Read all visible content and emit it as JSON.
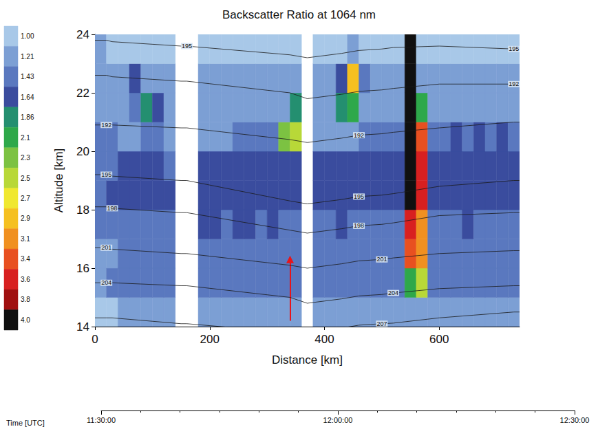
{
  "chart_data": {
    "type": "heatmap",
    "title": "Backscatter Ratio at 1064 nm",
    "x_label": "Distance [km]",
    "y_label": "Altitude [km]",
    "xlim": [
      0,
      740
    ],
    "xticks": [
      0,
      200,
      400,
      600
    ],
    "ylim": [
      14,
      24
    ],
    "yticks": [
      14,
      16,
      18,
      20,
      22,
      24
    ],
    "grid": false,
    "x_edges": [
      0,
      20,
      40,
      60,
      80,
      100,
      120,
      140,
      160,
      180,
      200,
      220,
      240,
      260,
      280,
      300,
      320,
      340,
      360,
      380,
      400,
      420,
      440,
      460,
      480,
      500,
      520,
      540,
      560,
      580,
      600,
      620,
      640,
      660,
      680,
      700,
      720,
      740
    ],
    "y_edges": [
      14,
      15,
      16,
      17,
      18,
      19,
      20,
      21,
      22,
      23,
      24
    ],
    "cells": [
      [
        1.0,
        1.0,
        1.21,
        1.21,
        1.21,
        1.21,
        1.21,
        null,
        null,
        1.21,
        1.21,
        1.21,
        1.21,
        1.21,
        1.21,
        1.21,
        1.21,
        1.21,
        null,
        1.21,
        1.21,
        1.21,
        1.21,
        1.21,
        1.21,
        1.21,
        1.21,
        1.21,
        1.21,
        1.21,
        1.21,
        1.21,
        1.21,
        1.21,
        1.21,
        1.21,
        1.21
      ],
      [
        1.21,
        1.43,
        1.43,
        1.43,
        1.43,
        1.43,
        1.43,
        null,
        null,
        1.43,
        1.43,
        1.43,
        1.43,
        1.43,
        1.43,
        1.43,
        1.43,
        1.43,
        null,
        1.43,
        1.43,
        1.43,
        1.43,
        1.43,
        1.43,
        1.43,
        1.43,
        2.1,
        2.5,
        1.43,
        1.43,
        1.43,
        1.43,
        1.43,
        1.43,
        1.43,
        1.43
      ],
      [
        1.21,
        1.21,
        1.43,
        1.43,
        1.43,
        1.43,
        1.43,
        null,
        null,
        1.43,
        1.43,
        1.43,
        1.43,
        1.43,
        1.43,
        1.43,
        1.43,
        1.43,
        null,
        1.43,
        1.43,
        1.43,
        1.43,
        1.43,
        1.43,
        1.43,
        1.43,
        3.4,
        3.1,
        1.43,
        1.43,
        1.43,
        1.43,
        1.43,
        1.43,
        1.43,
        1.43
      ],
      [
        1.43,
        1.43,
        1.43,
        1.43,
        1.43,
        1.43,
        1.43,
        null,
        null,
        1.64,
        1.64,
        1.43,
        1.64,
        1.64,
        1.43,
        1.64,
        1.43,
        1.43,
        null,
        1.43,
        1.43,
        1.64,
        1.43,
        1.43,
        1.43,
        1.43,
        1.43,
        3.6,
        3.1,
        1.43,
        1.43,
        1.43,
        1.64,
        1.43,
        1.43,
        1.43,
        1.43
      ],
      [
        1.43,
        1.64,
        1.64,
        1.64,
        1.64,
        1.64,
        1.64,
        null,
        null,
        1.64,
        1.64,
        1.64,
        1.64,
        1.64,
        1.64,
        1.64,
        1.64,
        1.64,
        null,
        1.64,
        1.64,
        1.64,
        1.64,
        1.64,
        1.64,
        1.64,
        1.64,
        4.0,
        3.6,
        1.64,
        1.64,
        1.64,
        1.64,
        1.64,
        1.64,
        1.64,
        1.64
      ],
      [
        1.43,
        1.43,
        1.64,
        1.64,
        1.64,
        1.64,
        1.43,
        null,
        null,
        1.64,
        1.64,
        1.64,
        1.64,
        1.64,
        1.64,
        1.64,
        1.64,
        1.64,
        null,
        1.64,
        1.64,
        1.64,
        1.64,
        1.64,
        1.64,
        1.64,
        1.64,
        4.0,
        3.6,
        1.64,
        1.64,
        1.64,
        1.64,
        1.64,
        1.64,
        1.64,
        1.64
      ],
      [
        1.43,
        1.43,
        1.21,
        1.21,
        1.43,
        1.43,
        1.21,
        null,
        null,
        1.21,
        1.21,
        1.21,
        1.43,
        1.43,
        1.43,
        1.43,
        2.3,
        2.5,
        null,
        1.21,
        1.21,
        1.21,
        1.21,
        1.43,
        1.43,
        1.43,
        1.43,
        4.0,
        3.4,
        1.43,
        1.43,
        1.64,
        1.43,
        1.64,
        1.43,
        1.64,
        1.43
      ],
      [
        1.21,
        1.21,
        1.21,
        1.43,
        1.86,
        1.64,
        1.21,
        null,
        null,
        1.21,
        1.21,
        1.21,
        1.21,
        1.21,
        1.21,
        1.21,
        1.21,
        1.86,
        null,
        1.21,
        1.21,
        1.86,
        2.1,
        1.21,
        1.21,
        1.21,
        1.21,
        4.0,
        2.1,
        1.21,
        1.21,
        1.21,
        1.21,
        1.21,
        1.21,
        1.21,
        1.21
      ],
      [
        1.21,
        1.21,
        1.21,
        1.64,
        1.21,
        1.21,
        1.21,
        null,
        null,
        1.21,
        1.21,
        1.21,
        1.21,
        1.21,
        1.21,
        1.21,
        1.21,
        1.21,
        null,
        1.21,
        1.21,
        1.64,
        2.9,
        1.43,
        1.21,
        1.21,
        1.21,
        4.0,
        1.21,
        1.21,
        1.21,
        1.21,
        1.21,
        1.21,
        1.21,
        1.21,
        1.21
      ],
      [
        1.21,
        1.0,
        1.0,
        1.0,
        1.0,
        1.0,
        1.0,
        null,
        null,
        1.0,
        1.0,
        1.0,
        1.0,
        1.0,
        1.0,
        1.0,
        1.0,
        1.0,
        null,
        1.0,
        1.0,
        1.0,
        1.21,
        1.0,
        1.0,
        1.0,
        1.0,
        4.0,
        1.0,
        1.0,
        1.0,
        1.0,
        1.0,
        1.0,
        1.0,
        1.0,
        1.0
      ]
    ],
    "colorbar": {
      "range": [
        1.0,
        4.0
      ],
      "ticks": [
        {
          "value": 1.0,
          "label": "1.00"
        },
        1.21,
        1.43,
        1.64,
        1.86,
        2.1,
        2.3,
        2.5,
        2.7,
        2.9,
        3.1,
        3.4,
        3.6,
        3.8,
        {
          "value": 4.0,
          "label": "4.0"
        }
      ],
      "colors": [
        "#a8c8e8",
        "#7c9fd4",
        "#5a78bf",
        "#3a4c9e",
        "#248f70",
        "#2ea84a",
        "#7cc242",
        "#b8d838",
        "#f0e830",
        "#f5c020",
        "#f09020",
        "#e85020",
        "#d82020",
        "#a01010",
        "#101010"
      ]
    },
    "contours": [
      {
        "label": "195",
        "color": "#1a1a1a",
        "x": [
          0,
          20,
          30,
          150,
          160,
          340,
          370,
          430,
          460,
          500,
          520,
          600,
          730,
          740
        ],
        "y": [
          23.8,
          23.8,
          23.75,
          23.6,
          23.6,
          23.3,
          23.2,
          23.35,
          23.45,
          23.5,
          23.55,
          23.6,
          23.5,
          23.5
        ],
        "label_x": [
          160,
          730
        ]
      },
      {
        "label": "192",
        "color": "#1a1a1a",
        "x": [
          0,
          20,
          30,
          150,
          160,
          340,
          370,
          430,
          460,
          500,
          520,
          600,
          730,
          740
        ],
        "y": [
          22.6,
          22.6,
          22.55,
          22.4,
          22.4,
          22.0,
          21.8,
          21.95,
          22.05,
          22.1,
          22.15,
          22.3,
          22.3,
          22.3
        ],
        "label_x": [
          730
        ]
      },
      {
        "label": "192",
        "color": "#1a1a1a",
        "x": [
          0,
          20,
          30,
          150,
          160,
          340,
          370,
          430,
          460,
          500,
          520,
          600,
          730,
          740
        ],
        "y": [
          20.9,
          20.9,
          20.9,
          20.8,
          20.8,
          20.4,
          20.3,
          20.45,
          20.55,
          20.6,
          20.65,
          20.8,
          21.0,
          21.0
        ],
        "label_x": [
          20,
          460
        ]
      },
      {
        "label": "195",
        "color": "#1a1a1a",
        "x": [
          0,
          20,
          30,
          150,
          160,
          340,
          370,
          430,
          460,
          500,
          520,
          600,
          730,
          740
        ],
        "y": [
          19.2,
          19.2,
          19.15,
          19.0,
          19.0,
          18.3,
          18.2,
          18.35,
          18.45,
          18.5,
          18.55,
          18.8,
          19.0,
          19.0
        ],
        "label_x": [
          20,
          460
        ]
      },
      {
        "label": "198",
        "color": "#1a1a1a",
        "x": [
          0,
          20,
          30,
          150,
          160,
          340,
          370,
          430,
          460,
          500,
          520,
          600,
          730,
          740
        ],
        "y": [
          18.1,
          18.1,
          18.05,
          17.9,
          17.9,
          17.3,
          17.2,
          17.35,
          17.45,
          17.5,
          17.55,
          17.8,
          17.9,
          17.9
        ],
        "label_x": [
          30,
          460
        ]
      },
      {
        "label": "201",
        "color": "#1a1a1a",
        "x": [
          0,
          20,
          30,
          150,
          160,
          340,
          370,
          430,
          460,
          500,
          520,
          600,
          730,
          740
        ],
        "y": [
          16.7,
          16.7,
          16.65,
          16.5,
          16.5,
          16.1,
          16.0,
          16.15,
          16.25,
          16.3,
          16.35,
          16.5,
          16.6,
          16.6
        ],
        "label_x": [
          20,
          500
        ]
      },
      {
        "label": "204",
        "color": "#1a1a1a",
        "x": [
          0,
          20,
          30,
          150,
          160,
          340,
          370,
          430,
          460,
          500,
          520,
          600,
          730,
          740
        ],
        "y": [
          15.5,
          15.5,
          15.5,
          15.4,
          15.4,
          15.0,
          14.8,
          14.95,
          15.05,
          15.1,
          15.15,
          15.3,
          15.4,
          15.4
        ],
        "label_x": [
          20,
          520
        ]
      },
      {
        "label": "207",
        "color": "#1a1a1a",
        "x": [
          0,
          20,
          30,
          150,
          160,
          340,
          370,
          430,
          460,
          500,
          520,
          600,
          730,
          740
        ],
        "y": [
          14.3,
          14.3,
          14.3,
          14.1,
          14.1,
          13.8,
          13.7,
          13.95,
          14.05,
          14.1,
          14.12,
          14.3,
          14.5,
          14.5
        ],
        "label_x": [
          500
        ]
      }
    ],
    "annotations": [
      {
        "type": "arrow",
        "x": [
          340,
          340
        ],
        "y": [
          14.2,
          16.3
        ],
        "color": "#e8141a"
      }
    ],
    "time_axis": {
      "label": "Time [UTC]",
      "xlim": [
        690,
        750
      ],
      "xticks": [
        {
          "value": 690,
          "label": "11:30:00"
        },
        {
          "value": 720,
          "label": "12:00:00"
        },
        {
          "value": 750,
          "label": "12:30:00"
        }
      ]
    }
  }
}
